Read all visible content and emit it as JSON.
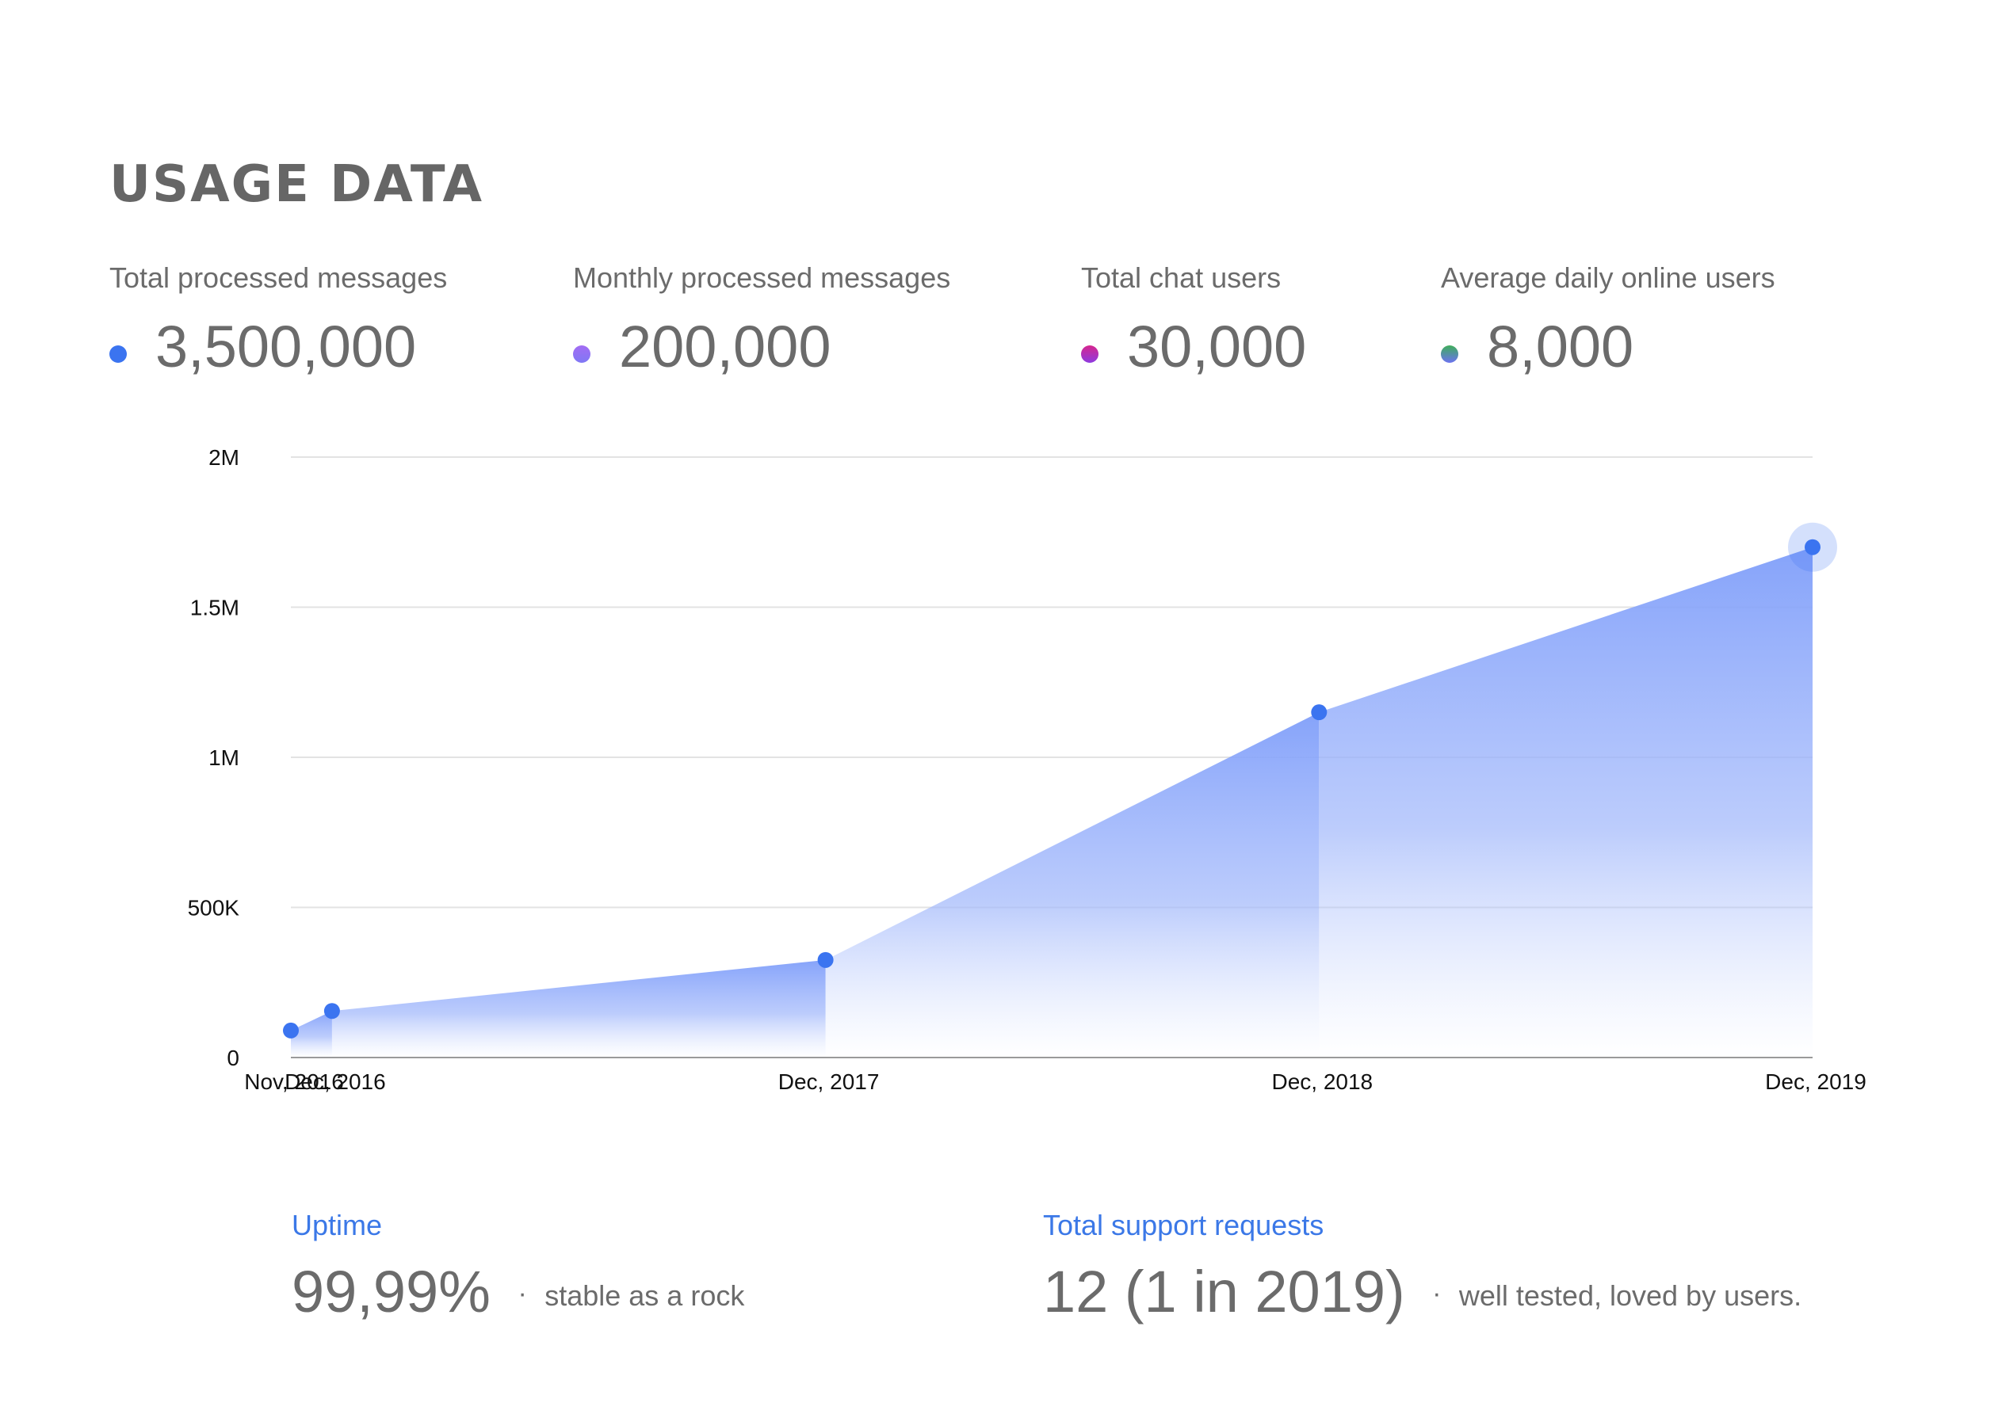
{
  "title": "USAGE DATA",
  "stats": [
    {
      "label": "Total processed messages",
      "value": "3,500,000",
      "dot_color": "#3b74f0",
      "dot_gradient": "#3b74f0"
    },
    {
      "label": "Monthly processed messages",
      "value": "200,000",
      "dot_color": "#a36cf3",
      "dot_gradient": "#7f78f5"
    },
    {
      "label": "Total chat users",
      "value": "30,000",
      "dot_color": "#d6268e",
      "dot_gradient": "#8e3ae0"
    },
    {
      "label": "Average daily online users",
      "value": "8,000",
      "dot_color": "#3fae5a",
      "dot_gradient": "#6c72f0"
    }
  ],
  "chart_data": {
    "type": "area",
    "x": [
      "Nov, 2016",
      "Dec, 2016",
      "Dec, 2017",
      "Dec, 2018",
      "Dec, 2019"
    ],
    "x_values": [
      "2016-11",
      "2016-12",
      "2017-12",
      "2018-12",
      "2019-12"
    ],
    "values": [
      90000,
      155000,
      325000,
      1150000,
      1700000
    ],
    "ylim": [
      0,
      2000000
    ],
    "y_ticks": [
      0,
      500000,
      1000000,
      1500000,
      2000000
    ],
    "y_tick_labels": [
      "0",
      "500K",
      "1M",
      "1.5M",
      "2M"
    ],
    "grid": true,
    "series_color": "#3b74f0",
    "fill_color": "#8aa6fb",
    "highlighted_point": "Dec, 2019"
  },
  "footer": {
    "uptime": {
      "label": "Uptime",
      "value": "99,99%",
      "separator": "·",
      "note": "stable as a rock"
    },
    "support": {
      "label": "Total support requests",
      "value": "12 (1 in 2019)",
      "separator": "·",
      "note": "well tested, loved by users."
    }
  }
}
